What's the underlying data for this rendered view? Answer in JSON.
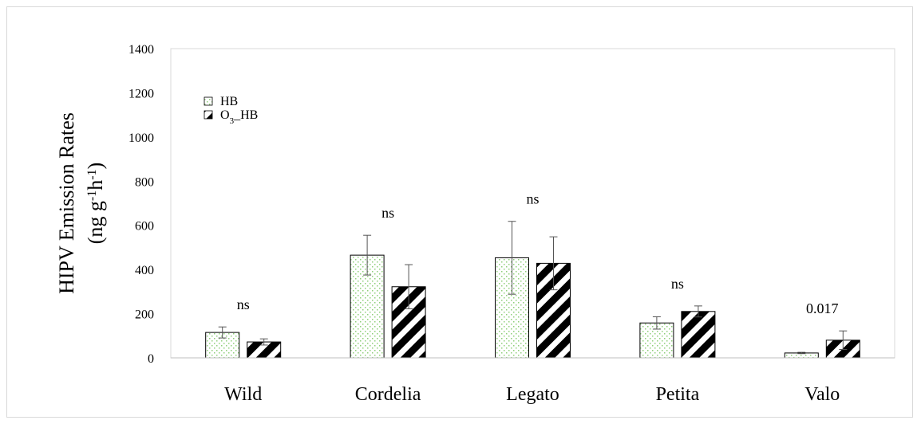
{
  "chart_data": {
    "type": "bar",
    "ylabel_line1": "HIPV Emission Rates",
    "ylabel_line2": "(ng g-1h-1)",
    "ylim": [
      0,
      1400
    ],
    "yticks": [
      0,
      200,
      400,
      600,
      800,
      1000,
      1200,
      1400
    ],
    "grid": false,
    "legend_position": "top-left",
    "categories": [
      "Wild",
      "Cordelia",
      "Legato",
      "Petita",
      "Valo"
    ],
    "series": [
      {
        "name": "HB",
        "pattern": "dots",
        "color": "#8fcf7a",
        "values": [
          115,
          465,
          453,
          158,
          22
        ],
        "errors": [
          25,
          90,
          165,
          28,
          3
        ]
      },
      {
        "name": "O3_HB",
        "pattern": "diagonal-stripes",
        "color": "#000000",
        "values": [
          72,
          322,
          428,
          210,
          80
        ],
        "errors": [
          14,
          100,
          120,
          25,
          42
        ]
      }
    ],
    "annotations": [
      "ns",
      "ns",
      "ns",
      "ns",
      "0.017"
    ]
  }
}
